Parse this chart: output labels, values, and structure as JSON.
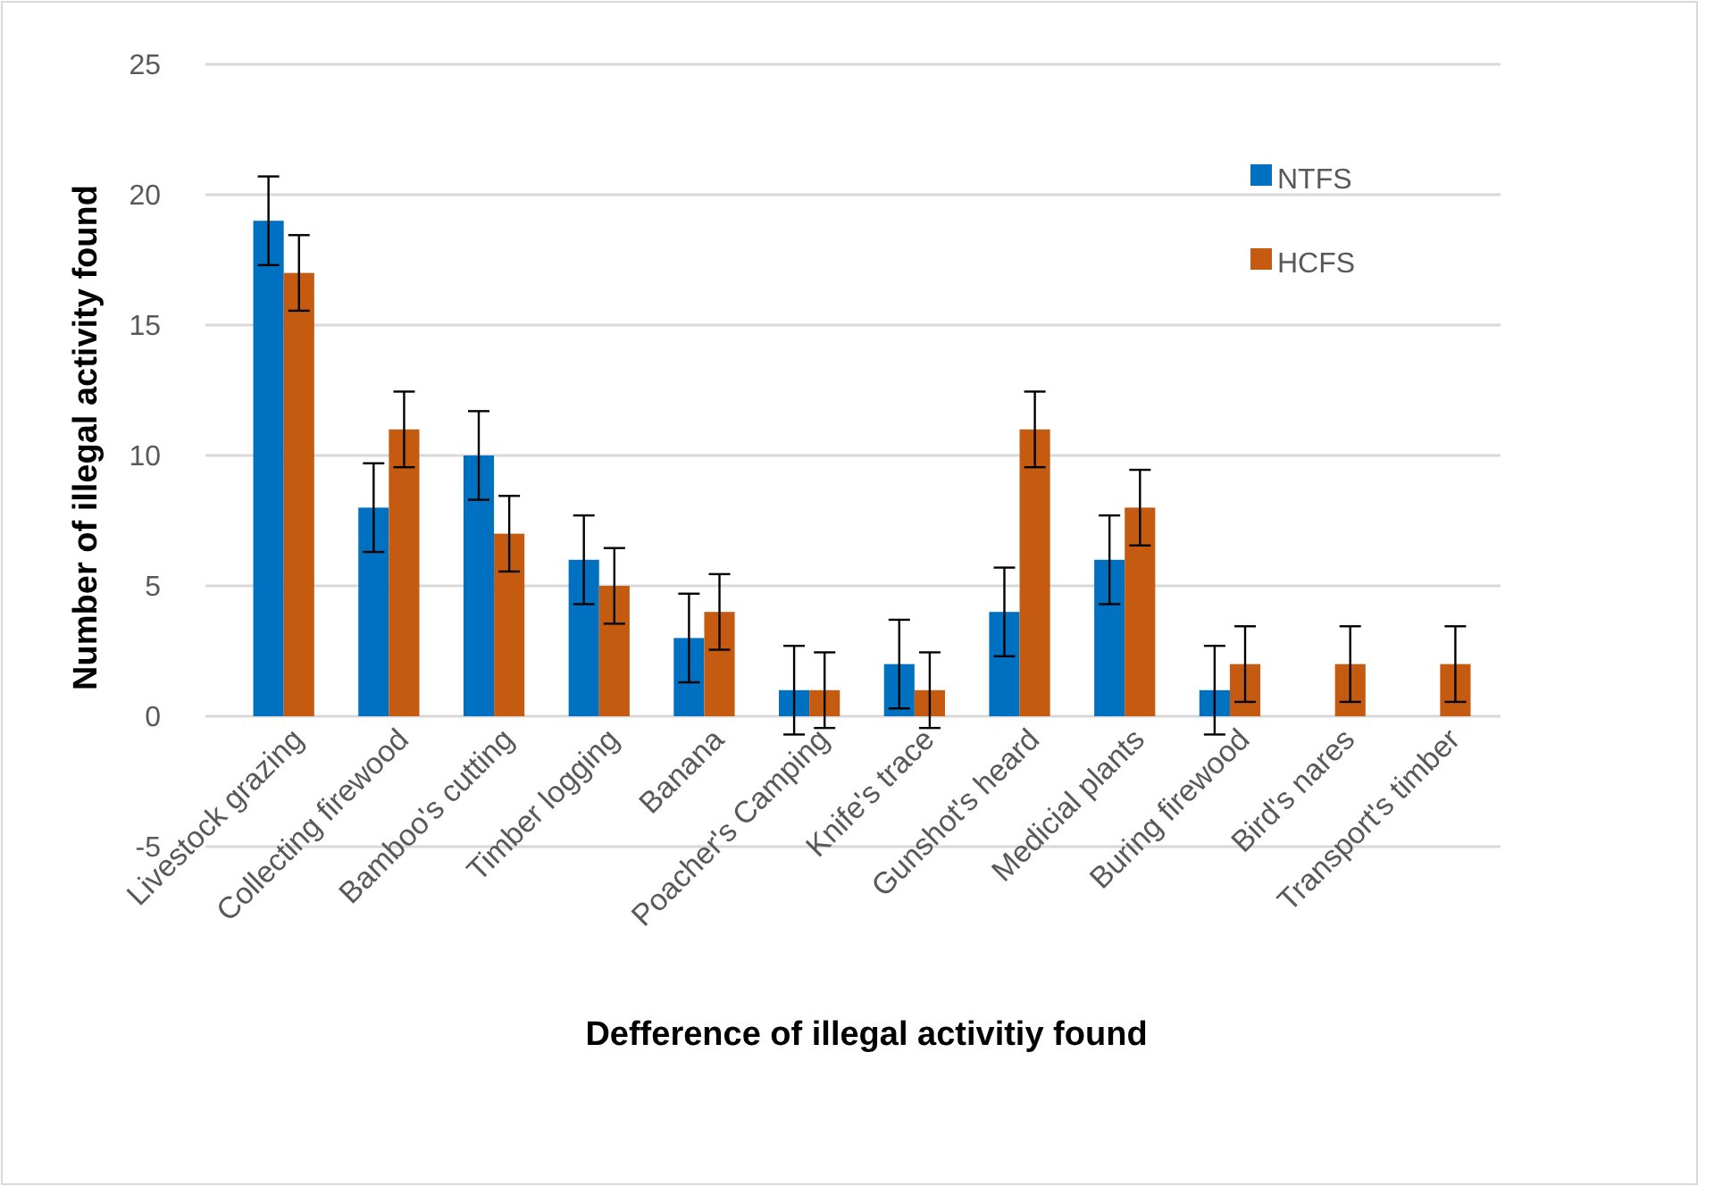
{
  "chart_data": {
    "type": "bar",
    "xlabel": "Defference of illegal activitiy found",
    "ylabel": "Number of illegal activity found",
    "categories": [
      "Livestock grazing",
      "Collecting firewood",
      "Bamboo's cutting",
      "Timber logging",
      "Banana",
      "Poacher's Camping",
      "Knife's trace",
      "Gunshot's heard",
      "Medicial plants",
      "Buring firewood",
      "Bird's nares",
      "Transport's timber"
    ],
    "series": [
      {
        "name": "NTFS",
        "color": "#0070c0",
        "values": [
          19,
          8,
          10,
          6,
          3,
          1,
          2,
          4,
          6,
          1,
          null,
          null
        ],
        "errors": [
          1.7,
          1.7,
          1.7,
          1.7,
          1.7,
          1.7,
          1.7,
          1.7,
          1.7,
          1.7,
          null,
          null
        ]
      },
      {
        "name": "HCFS",
        "color": "#c55a11",
        "values": [
          17,
          11,
          7,
          5,
          4,
          1,
          1,
          11,
          8,
          2,
          2,
          2
        ],
        "errors": [
          1.45,
          1.45,
          1.45,
          1.45,
          1.45,
          1.45,
          1.45,
          1.45,
          1.45,
          1.45,
          1.45,
          1.45
        ]
      }
    ],
    "ylim": [
      -5,
      25
    ],
    "yticks": [
      -5,
      0,
      5,
      10,
      15,
      20,
      25
    ],
    "grid": "y",
    "legend": "top right"
  }
}
